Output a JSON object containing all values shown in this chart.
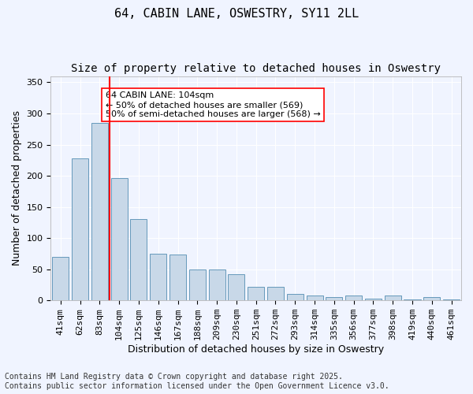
{
  "title1": "64, CABIN LANE, OSWESTRY, SY11 2LL",
  "title2": "Size of property relative to detached houses in Oswestry",
  "xlabel": "Distribution of detached houses by size in Oswestry",
  "ylabel": "Number of detached properties",
  "categories": [
    "41sqm",
    "62sqm",
    "83sqm",
    "104sqm",
    "125sqm",
    "146sqm",
    "167sqm",
    "188sqm",
    "209sqm",
    "230sqm",
    "251sqm",
    "272sqm",
    "293sqm",
    "314sqm",
    "335sqm",
    "356sqm",
    "377sqm",
    "398sqm",
    "419sqm",
    "440sqm",
    "461sqm"
  ],
  "values": [
    70,
    228,
    285,
    196,
    130,
    75,
    73,
    50,
    50,
    42,
    22,
    22,
    10,
    8,
    5,
    8,
    3,
    8,
    2,
    5,
    2
  ],
  "bar_color": "#c8d8e8",
  "bar_edge_color": "#6699bb",
  "vline_x": 3,
  "vline_color": "red",
  "annotation_text": "64 CABIN LANE: 104sqm\n← 50% of detached houses are smaller (569)\n50% of semi-detached houses are larger (568) →",
  "annotation_box_color": "white",
  "annotation_box_edge_color": "red",
  "ylim": [
    0,
    360
  ],
  "yticks": [
    0,
    50,
    100,
    150,
    200,
    250,
    300,
    350
  ],
  "background_color": "#f0f4ff",
  "footer_text": "Contains HM Land Registry data © Crown copyright and database right 2025.\nContains public sector information licensed under the Open Government Licence v3.0.",
  "title_fontsize": 11,
  "subtitle_fontsize": 10,
  "axis_label_fontsize": 9,
  "tick_fontsize": 8,
  "annotation_fontsize": 8,
  "footer_fontsize": 7
}
